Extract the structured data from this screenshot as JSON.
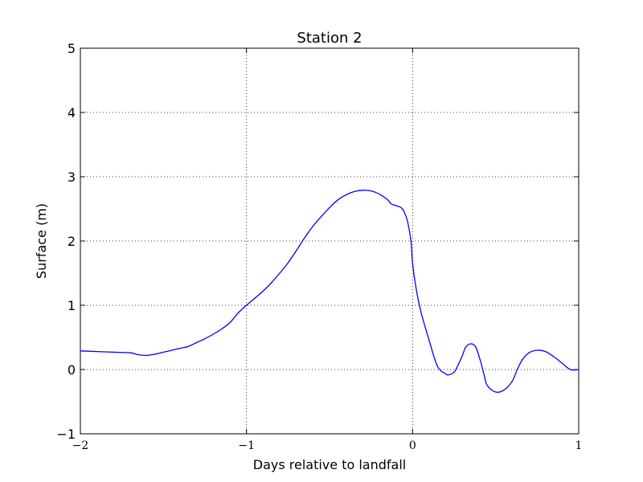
{
  "chart_data": {
    "type": "line",
    "title": "Station 2",
    "xlabel": "Days relative to landfall",
    "ylabel": "Surface (m)",
    "xlim": [
      -2,
      1
    ],
    "ylim": [
      -1,
      5
    ],
    "x_ticks": [
      "−2",
      "−1",
      "0",
      "1"
    ],
    "y_ticks": [
      "−1",
      "0",
      "1",
      "2",
      "3",
      "4",
      "5"
    ],
    "grid": true,
    "grid_style": "dotted",
    "line_color": "#0000ff",
    "series": [
      {
        "x": [
          -2.0,
          -1.9,
          -1.8,
          -1.7,
          -1.65,
          -1.6,
          -1.55,
          -1.5,
          -1.45,
          -1.4,
          -1.35,
          -1.3,
          -1.25,
          -1.2,
          -1.15,
          -1.1,
          -1.05,
          -1.0,
          -0.95,
          -0.9,
          -0.85,
          -0.8,
          -0.75,
          -0.7,
          -0.65,
          -0.6,
          -0.55,
          -0.5,
          -0.45,
          -0.4,
          -0.35,
          -0.3,
          -0.25,
          -0.2,
          -0.15,
          -0.13,
          -0.1,
          -0.07,
          -0.05,
          -0.03,
          -0.01,
          0.0,
          0.02,
          0.05,
          0.1,
          0.15,
          0.2,
          0.22,
          0.25,
          0.27,
          0.3,
          0.32,
          0.35,
          0.38,
          0.41,
          0.43,
          0.45,
          0.5,
          0.55,
          0.6,
          0.63,
          0.66,
          0.7,
          0.75,
          0.8,
          0.85,
          0.9,
          0.95,
          1.0
        ],
        "y": [
          0.29,
          0.28,
          0.27,
          0.26,
          0.23,
          0.22,
          0.24,
          0.27,
          0.3,
          0.33,
          0.36,
          0.42,
          0.48,
          0.55,
          0.63,
          0.73,
          0.88,
          1.0,
          1.11,
          1.22,
          1.35,
          1.5,
          1.66,
          1.85,
          2.05,
          2.23,
          2.38,
          2.52,
          2.64,
          2.72,
          2.77,
          2.79,
          2.78,
          2.73,
          2.64,
          2.58,
          2.55,
          2.52,
          2.45,
          2.3,
          2.0,
          1.65,
          1.28,
          0.9,
          0.45,
          0.05,
          -0.07,
          -0.08,
          -0.04,
          0.05,
          0.22,
          0.35,
          0.4,
          0.35,
          0.12,
          -0.08,
          -0.25,
          -0.35,
          -0.32,
          -0.18,
          0.0,
          0.15,
          0.26,
          0.3,
          0.28,
          0.2,
          0.1,
          0.0,
          0.0
        ]
      }
    ]
  }
}
